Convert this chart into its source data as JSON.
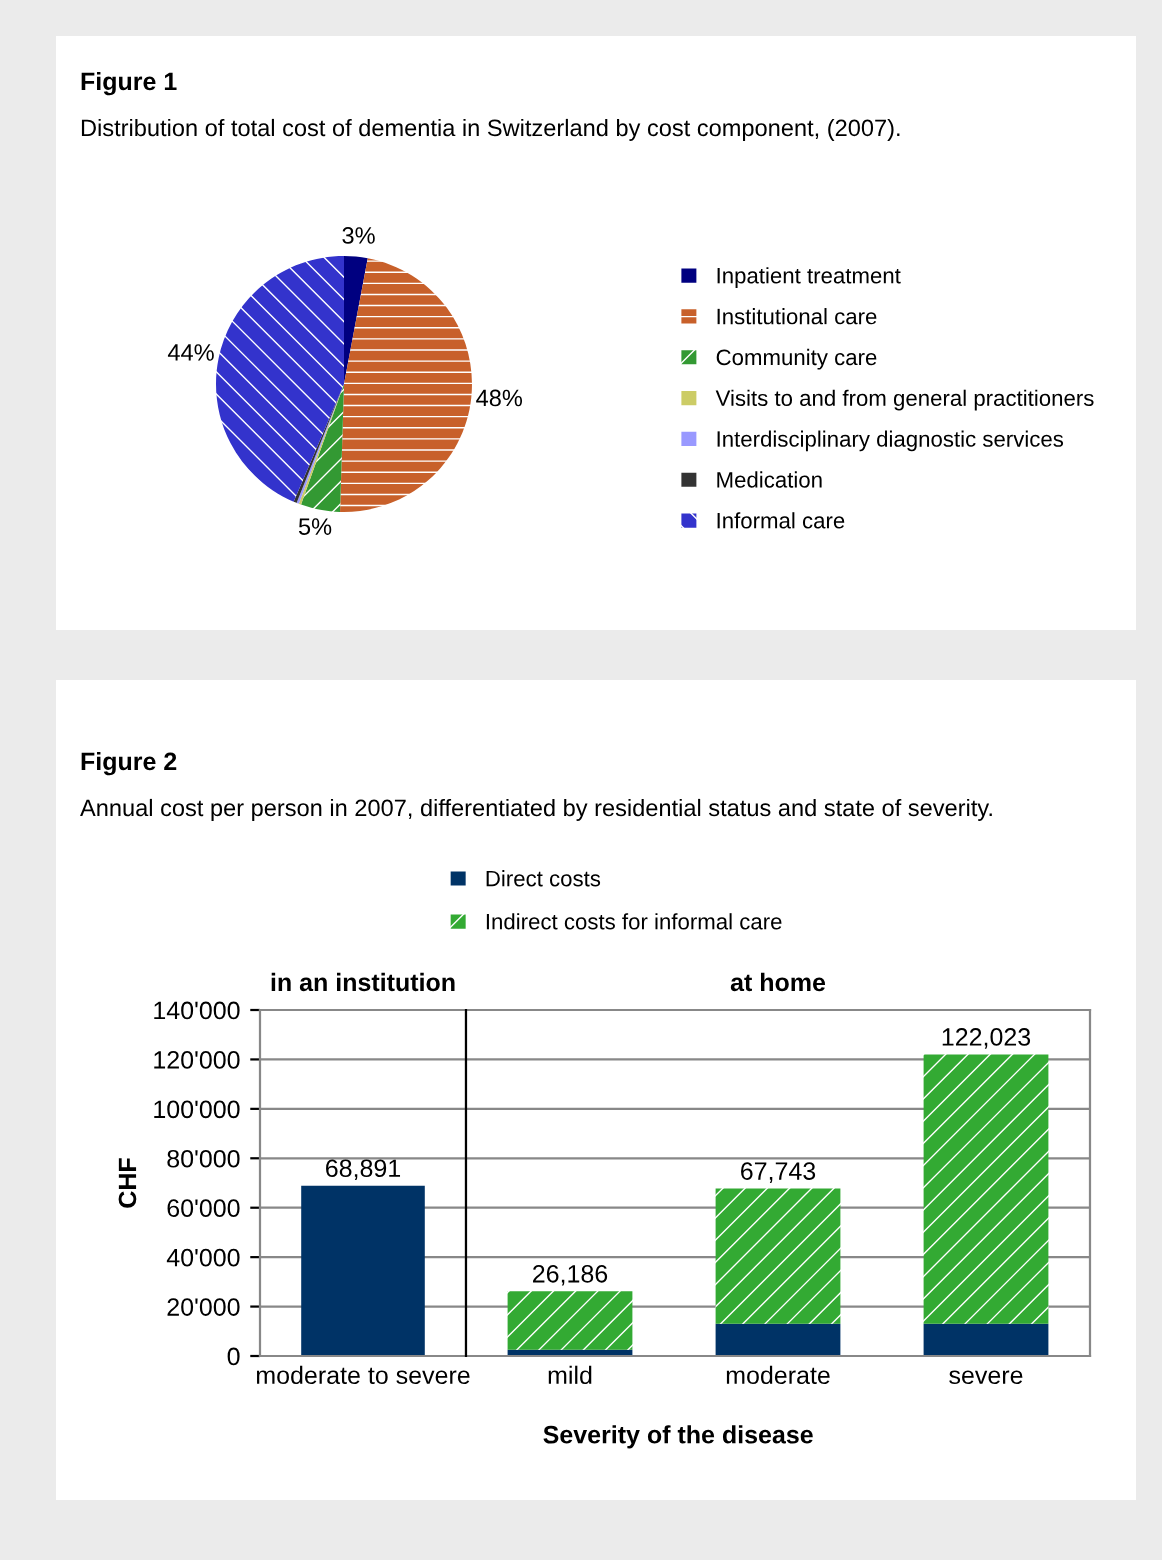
{
  "chart_data": [
    {
      "type": "pie",
      "title": "Figure 1",
      "subtitle": "Distribution of total cost of dementia in Switzerland by cost component, (2007).",
      "categories": [
        "Inpatient treatment",
        "Institutional care",
        "Community care",
        "Visits to and from general practitioners",
        "Interdisciplinary diagnostic services",
        "Medication",
        "Informal care"
      ],
      "values": [
        3,
        48,
        5,
        0.3,
        0.3,
        0.4,
        44
      ],
      "value_labels": [
        "3%",
        "48%",
        "5%",
        null,
        null,
        null,
        "44%"
      ],
      "colors": [
        "#000080",
        "#c8602a",
        "#339933",
        "#cccc66",
        "#9999ff",
        "#333333",
        "#3333cc"
      ],
      "legend": "right"
    },
    {
      "type": "bar",
      "stacked": true,
      "title": "Figure 2",
      "subtitle": "Annual cost per person in 2007, differentiated by residential status and state of severity.",
      "ylabel": "CHF",
      "categories": [
        "moderate to severe"
      ],
      "series": [
        {
          "color": "#003366",
          "values": [
            68891
          ]
        }
      ],
      "totals": [
        "68,891"
      ],
      "ylim": [
        0,
        140000
      ],
      "yticks": [
        0,
        {
          "value": 20000,
          "label": "20'000"
        },
        {
          "value": 40000,
          "label": "40'000"
        },
        {
          "value": 60000,
          "label": "60'000"
        },
        {
          "value": 80000,
          "label": "80'000"
        },
        {
          "value": 100000,
          "label": "100'000"
        },
        {
          "value": 120000,
          "label": "120'000"
        },
        {
          "value": 140000,
          "label": "140'000"
        }
      ],
      "annotations": [
        "in an institution"
      ],
      "grid": "y"
    },
    {
      "type": "bar",
      "stacked": true,
      "xlabel": "Severity of the disease",
      "categories": [
        "mild",
        "moderate",
        "severe"
      ],
      "series": [
        {
          "name": "Direct costs",
          "color": "#003366",
          "values": [
            2500,
            13000,
            13000
          ]
        },
        {
          "name": "Indirect costs for informal care",
          "color": "#33aa33",
          "values": [
            23686,
            54743,
            109023
          ]
        }
      ],
      "totals": [
        "26,186",
        "67,743",
        "122,023"
      ],
      "ylim": [
        0,
        140000
      ],
      "yticks": [
        0,
        20000,
        40000,
        60000,
        80000,
        100000,
        120000,
        140000
      ],
      "tick_labels": "x",
      "annotations": [
        "at home"
      ],
      "grid": "y",
      "legend": "top"
    }
  ]
}
